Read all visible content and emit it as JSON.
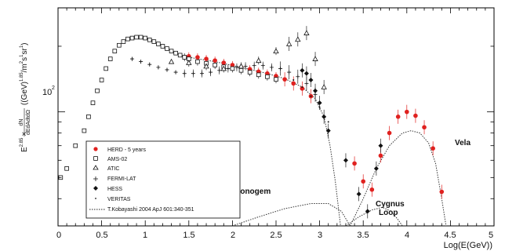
{
  "chart_data": {
    "type": "scatter",
    "xlabel": "Log(E(GeV))",
    "ylabel": "E^2.85 × dN/dEdAdtdΩ ((GeV)^1.85/m²s¹sr¹)",
    "ylabel_parts": {
      "e_base": "E",
      "e_exp": "2.85",
      "times": "×",
      "frac_num": "dN",
      "frac_den": "dEdAdtdΩ",
      "units": "((GeV)",
      "units_exp": "1.85",
      "units_rest": "/m",
      "m_exp": "2",
      "s": "s",
      "s_exp": "1",
      "sr": "sr",
      "sr_exp": "1",
      "close": ")"
    },
    "xlim": [
      0,
      5
    ],
    "ylim": [
      30,
      300
    ],
    "yscale": "log",
    "x_ticks": [
      "0",
      "0.5",
      "1",
      "1.5",
      "2",
      "2.5",
      "3",
      "3.5",
      "4",
      "4.5",
      "5"
    ],
    "y_tick_label": "10²",
    "y_tick_label_parts": {
      "base": "10",
      "exp": "2"
    },
    "legend_position": "bottom-left",
    "annotations": [
      "Monogem",
      "Cygnus",
      "Loop",
      "Vela"
    ],
    "series": [
      {
        "name": "HERD - 5 years",
        "marker": "filled-circle",
        "color": "#e0211f",
        "points": [
          [
            1.5,
            180
          ],
          [
            1.6,
            178
          ],
          [
            1.7,
            175
          ],
          [
            1.8,
            172
          ],
          [
            1.9,
            168
          ],
          [
            2.0,
            164
          ],
          [
            2.1,
            160
          ],
          [
            2.2,
            157
          ],
          [
            2.3,
            153
          ],
          [
            2.4,
            150
          ],
          [
            2.5,
            146
          ],
          [
            2.6,
            141
          ],
          [
            2.7,
            135
          ],
          [
            2.8,
            128
          ],
          [
            2.9,
            118
          ],
          [
            3.4,
            58
          ],
          [
            3.5,
            48
          ],
          [
            3.6,
            44
          ],
          [
            3.7,
            63
          ],
          [
            3.8,
            80
          ],
          [
            3.9,
            95
          ],
          [
            4.0,
            100
          ],
          [
            4.1,
            96
          ],
          [
            4.2,
            85
          ],
          [
            4.3,
            68
          ],
          [
            4.4,
            43
          ]
        ]
      },
      {
        "name": "AMS-02",
        "marker": "open-square",
        "color": "#111111",
        "points": [
          [
            0.03,
            50
          ],
          [
            0.1,
            55
          ],
          [
            0.2,
            70
          ],
          [
            0.3,
            82
          ],
          [
            0.35,
            95
          ],
          [
            0.4,
            110
          ],
          [
            0.45,
            125
          ],
          [
            0.5,
            140
          ],
          [
            0.55,
            158
          ],
          [
            0.6,
            175
          ],
          [
            0.65,
            190
          ],
          [
            0.7,
            202
          ],
          [
            0.75,
            210
          ],
          [
            0.8,
            216
          ],
          [
            0.85,
            218
          ],
          [
            0.9,
            220
          ],
          [
            0.95,
            220
          ],
          [
            1.0,
            218
          ],
          [
            1.05,
            214
          ],
          [
            1.1,
            210
          ],
          [
            1.15,
            205
          ],
          [
            1.2,
            200
          ],
          [
            1.25,
            195
          ],
          [
            1.3,
            190
          ],
          [
            1.35,
            186
          ],
          [
            1.4,
            182
          ],
          [
            1.45,
            178
          ],
          [
            1.5,
            175
          ],
          [
            1.6,
            170
          ],
          [
            1.7,
            167
          ],
          [
            1.8,
            164
          ],
          [
            1.9,
            161
          ],
          [
            2.0,
            158
          ],
          [
            2.1,
            155
          ],
          [
            2.2,
            152
          ],
          [
            2.3,
            148
          ],
          [
            2.4,
            145
          ],
          [
            2.5,
            141
          ]
        ]
      },
      {
        "name": "ATIC",
        "marker": "open-triangle",
        "color": "#111111",
        "points": [
          [
            1.3,
            170
          ],
          [
            1.5,
            168
          ],
          [
            1.7,
            162
          ],
          [
            1.9,
            158
          ],
          [
            2.1,
            162
          ],
          [
            2.3,
            172
          ],
          [
            2.5,
            190
          ],
          [
            2.65,
            205
          ],
          [
            2.75,
            215
          ],
          [
            2.85,
            230
          ],
          [
            2.95,
            175
          ],
          [
            3.05,
            130
          ]
        ]
      },
      {
        "name": "FERMI-LAT",
        "marker": "small-cross",
        "color": "#111111",
        "points": [
          [
            0.85,
            175
          ],
          [
            0.95,
            170
          ],
          [
            1.05,
            165
          ],
          [
            1.15,
            160
          ],
          [
            1.25,
            156
          ],
          [
            1.35,
            152
          ],
          [
            1.45,
            150
          ],
          [
            1.55,
            150
          ],
          [
            1.65,
            150
          ],
          [
            1.75,
            152
          ],
          [
            1.85,
            155
          ],
          [
            1.95,
            158
          ],
          [
            2.05,
            160
          ],
          [
            2.15,
            162
          ],
          [
            2.25,
            163
          ],
          [
            2.35,
            163
          ],
          [
            2.45,
            160
          ],
          [
            2.55,
            158
          ],
          [
            2.65,
            152
          ],
          [
            2.75,
            145
          ],
          [
            2.85,
            135
          ],
          [
            2.95,
            120
          ]
        ]
      },
      {
        "name": "HESS",
        "marker": "filled-diamond",
        "color": "#111111",
        "points": [
          [
            2.8,
            155
          ],
          [
            2.85,
            150
          ],
          [
            2.9,
            140
          ],
          [
            2.95,
            125
          ],
          [
            3.0,
            110
          ],
          [
            3.05,
            95
          ],
          [
            3.1,
            82
          ],
          [
            3.3,
            60
          ],
          [
            3.45,
            42
          ],
          [
            3.55,
            35
          ],
          [
            3.65,
            55
          ],
          [
            3.7,
            70
          ]
        ]
      },
      {
        "name": "VERITAS",
        "marker": "tiny-dot",
        "color": "#111111",
        "points": [
          [
            2.7,
            140
          ],
          [
            2.8,
            130
          ],
          [
            2.9,
            118
          ],
          [
            3.0,
            105
          ],
          [
            3.1,
            90
          ]
        ]
      },
      {
        "name": "T.Kobayashi 2004 ApJ 601:340-351",
        "marker": "dashed-line",
        "color": "#222222",
        "points": []
      }
    ]
  }
}
